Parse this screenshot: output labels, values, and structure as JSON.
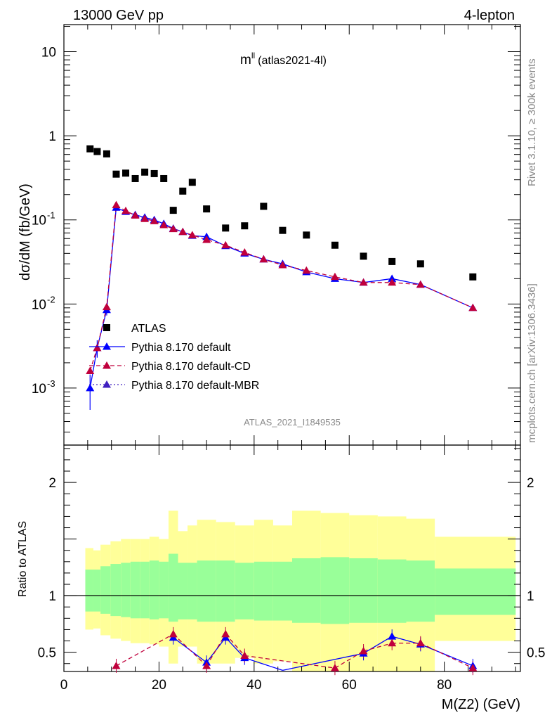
{
  "header": {
    "energy": "13000 GeV pp",
    "channel": "4-lepton"
  },
  "side_labels": {
    "rivet": "Rivet 3.1.10, ≥ 300k events",
    "mcplots": "mcplots.cern.ch [arXiv:1306.3436]"
  },
  "chart_data": {
    "type": "scatter",
    "title_main": "m",
    "title_sup": "ll",
    "title_sub": "(atlas2021-4l)",
    "watermark": "ATLAS_2021_I1849535",
    "xlabel": "M(Z2) (GeV)",
    "ylabel_top": "dσ/dM (fb/GeV)",
    "ylabel_bottom": "Ratio to ATLAS",
    "xlim": [
      0,
      96
    ],
    "ylim_top": [
      0.00021,
      21
    ],
    "yscale_top": "log",
    "ylim_bottom": [
      0.33,
      2.33
    ],
    "x_ticks": [
      "0",
      "20",
      "40",
      "60",
      "80"
    ],
    "top_y_ticks": [
      {
        "base": "10",
        "exp": "-3"
      },
      {
        "base": "10",
        "exp": "-2"
      },
      {
        "base": "10",
        "exp": "-1"
      },
      {
        "base": "1",
        "exp": ""
      },
      {
        "base": "10",
        "exp": ""
      }
    ],
    "bottom_y_ticks": [
      "0.5",
      "1",
      "2"
    ],
    "legend": [
      "ATLAS",
      "Pythia 8.170 default",
      "Pythia 8.170 default-CD",
      "Pythia 8.170 default-MBR"
    ],
    "legend_position": "lower-left",
    "data": {
      "name": "ATLAS",
      "color": "#000000",
      "x": [
        5.5,
        7,
        9,
        11,
        13,
        15,
        17,
        19,
        21,
        23,
        25,
        27,
        30,
        34,
        38,
        42,
        46,
        51,
        57,
        63,
        69,
        75,
        86
      ],
      "y": [
        0.7,
        0.65,
        0.61,
        0.35,
        0.36,
        0.31,
        0.37,
        0.355,
        0.31,
        0.13,
        0.22,
        0.28,
        0.135,
        0.08,
        0.085,
        0.145,
        0.075,
        0.066,
        0.05,
        0.037,
        0.032,
        0.03,
        0.021
      ]
    },
    "mc_x": [
      5.5,
      7,
      9,
      11,
      13,
      15,
      17,
      19,
      21,
      23,
      25,
      27,
      30,
      34,
      38,
      42,
      46,
      51,
      57,
      63,
      69,
      75,
      86
    ],
    "series": [
      {
        "name": "Pythia 8.170 default",
        "color": "#0000ff",
        "line": "solid",
        "y": [
          0.001,
          0.003,
          0.0085,
          0.14,
          0.125,
          0.115,
          0.107,
          0.1,
          0.09,
          0.079,
          0.072,
          0.065,
          0.063,
          0.049,
          0.04,
          0.034,
          0.03,
          0.024,
          0.02,
          0.018,
          0.02,
          0.017,
          0.009
        ],
        "yerr_low": [
          0.00045,
          0.0007,
          0.0012,
          0.01,
          0.006,
          0.004,
          0.004,
          0.003,
          0.003,
          0.003,
          0.002,
          0.002,
          0.002,
          0.0015,
          0.001,
          0.001,
          0.001,
          0.0008,
          0.0007,
          0.0006,
          0.0007,
          0.0006,
          0.0004
        ],
        "ratio": [
          null,
          null,
          null,
          null,
          null,
          null,
          null,
          null,
          null,
          0.63,
          null,
          null,
          0.41,
          0.63,
          0.45,
          null,
          0.34,
          null,
          null,
          0.49,
          0.64,
          0.57,
          0.38
        ]
      },
      {
        "name": "Pythia 8.170 default-CD",
        "color": "#c0003c",
        "line": "dashed",
        "y": [
          0.0016,
          0.003,
          0.0092,
          0.15,
          0.128,
          0.113,
          0.103,
          0.097,
          0.087,
          0.078,
          0.072,
          0.066,
          0.058,
          0.05,
          0.041,
          0.034,
          0.029,
          0.025,
          0.021,
          0.018,
          0.018,
          0.017,
          0.009
        ],
        "ratio": [
          null,
          null,
          null,
          0.38,
          null,
          null,
          null,
          null,
          null,
          0.66,
          null,
          null,
          0.38,
          0.66,
          0.47,
          null,
          null,
          null,
          0.36,
          0.51,
          0.58,
          0.58,
          0.36
        ]
      },
      {
        "name": "Pythia 8.170 default-MBR",
        "color": "#4020c0",
        "line": "dotted",
        "y": [
          null,
          null,
          null,
          null,
          null,
          null,
          null,
          null,
          null,
          null,
          null,
          null,
          null,
          null,
          null,
          null,
          null,
          null,
          null,
          null,
          null,
          null,
          null
        ],
        "ratio": [
          null,
          null,
          null,
          null,
          null,
          null,
          null,
          null,
          null,
          null,
          null,
          null,
          null,
          null,
          null,
          null,
          null,
          null,
          null,
          null,
          null,
          null,
          null
        ]
      }
    ],
    "ratio_bands": {
      "edges": [
        4.5,
        6.2,
        7.7,
        9.8,
        12,
        14,
        16,
        18,
        20,
        22,
        24,
        26,
        28,
        32,
        36,
        40,
        44,
        48,
        54,
        60,
        66,
        72,
        78,
        95
      ],
      "green_low": [
        0.86,
        0.86,
        0.84,
        0.82,
        0.81,
        0.8,
        0.8,
        0.79,
        0.8,
        0.77,
        0.79,
        0.79,
        0.77,
        0.77,
        0.79,
        0.78,
        0.78,
        0.76,
        0.75,
        0.76,
        0.76,
        0.77,
        0.83
      ],
      "green_high": [
        1.23,
        1.23,
        1.26,
        1.28,
        1.29,
        1.3,
        1.3,
        1.31,
        1.3,
        1.37,
        1.29,
        1.29,
        1.31,
        1.31,
        1.29,
        1.3,
        1.3,
        1.33,
        1.34,
        1.33,
        1.32,
        1.31,
        1.24
      ],
      "yellow_low": [
        0.7,
        0.71,
        0.65,
        0.62,
        0.6,
        0.58,
        0.58,
        0.57,
        0.55,
        0.4,
        0.55,
        0.55,
        0.4,
        0.4,
        0.45,
        0.4,
        0.42,
        0.3,
        0.3,
        0.3,
        0.3,
        0.3,
        0.6
      ],
      "yellow_high": [
        1.42,
        1.4,
        1.45,
        1.48,
        1.5,
        1.5,
        1.5,
        1.52,
        1.5,
        1.75,
        1.57,
        1.62,
        1.67,
        1.65,
        1.62,
        1.67,
        1.62,
        1.75,
        1.73,
        1.71,
        1.7,
        1.68,
        1.52
      ]
    }
  }
}
